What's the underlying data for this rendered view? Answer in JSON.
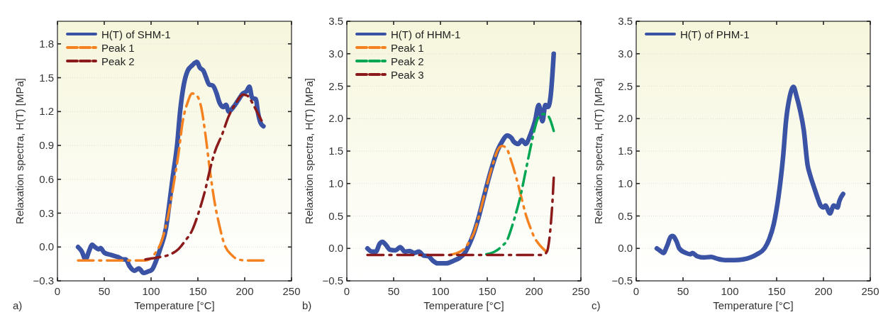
{
  "chart_data": [
    {
      "type": "line",
      "xlabel": "Temperature [°C]",
      "ylabel": "Relaxation spectra, H(T) [MPa]",
      "annotations": [
        "a)"
      ],
      "xlim": [
        0,
        250
      ],
      "xticks": [
        0,
        50,
        100,
        150,
        200,
        250
      ],
      "ylim": [
        -0.3,
        2.0
      ],
      "yticks": [
        {
          "value": -0.3,
          "label": "−0.3"
        },
        {
          "value": 0,
          "label": "0.0"
        },
        0.3,
        0.6,
        0.9,
        1.2,
        1.5,
        1.8
      ],
      "grid": "y",
      "legend": "top left",
      "line_style": "solid",
      "series": [
        {
          "name": "H(T) of SHM-1",
          "color": "#3a53a4",
          "x": [
            22,
            26,
            30,
            34,
            37,
            40,
            44,
            46,
            50,
            57,
            65,
            70,
            73,
            77,
            82,
            87,
            92,
            96,
            101,
            105,
            110,
            116,
            119,
            123,
            128,
            131,
            135,
            139,
            144,
            149,
            152,
            156,
            158,
            162,
            166,
            170,
            173,
            177,
            180,
            183,
            188,
            193,
            198,
            202,
            205,
            208,
            212,
            214,
            217,
            220
          ],
          "values": [
            0.0,
            -0.04,
            -0.11,
            -0.03,
            0.02,
            0.0,
            -0.02,
            -0.01,
            -0.05,
            -0.07,
            -0.09,
            -0.11,
            -0.11,
            -0.17,
            -0.21,
            -0.19,
            -0.23,
            -0.22,
            -0.2,
            -0.13,
            -0.01,
            0.17,
            0.35,
            0.61,
            0.92,
            1.2,
            1.44,
            1.56,
            1.61,
            1.64,
            1.59,
            1.56,
            1.52,
            1.44,
            1.43,
            1.36,
            1.28,
            1.24,
            1.26,
            1.2,
            1.24,
            1.3,
            1.36,
            1.38,
            1.42,
            1.32,
            1.31,
            1.2,
            1.1,
            1.07
          ]
        },
        {
          "name": "Peak 1",
          "color": "#f58220",
          "line_style": "dashed",
          "x": [
            22,
            94,
            104,
            112,
            119,
            124,
            129,
            134,
            139,
            144,
            149,
            154,
            158,
            163,
            168,
            173,
            178,
            186,
            193,
            203,
            220
          ],
          "values": [
            -0.12,
            -0.12,
            -0.06,
            0.07,
            0.31,
            0.55,
            0.81,
            1.12,
            1.28,
            1.36,
            1.34,
            1.22,
            1.0,
            0.67,
            0.39,
            0.19,
            0.03,
            -0.07,
            -0.11,
            -0.12,
            -0.12
          ]
        },
        {
          "name": "Peak 2",
          "color": "#8b1a1a",
          "line_style": "dashed",
          "x": [
            94,
            109,
            119,
            129,
            136,
            144,
            151,
            158,
            163,
            168,
            176,
            183,
            191,
            198,
            203,
            208,
            213,
            218
          ],
          "values": [
            -0.11,
            -0.09,
            -0.07,
            -0.02,
            0.05,
            0.15,
            0.31,
            0.51,
            0.69,
            0.84,
            1.0,
            1.16,
            1.28,
            1.35,
            1.34,
            1.28,
            1.2,
            1.12
          ]
        }
      ]
    },
    {
      "type": "line",
      "xlabel": "Temperature [°C]",
      "ylabel": "Relaxation spectra, H(T) [MPa]",
      "annotations": [
        "b)"
      ],
      "xlim": [
        0,
        250
      ],
      "xticks": [
        0,
        50,
        100,
        150,
        200,
        250
      ],
      "ylim": [
        -0.5,
        3.5
      ],
      "yticks": [
        {
          "value": -0.5,
          "label": "−0.5"
        },
        {
          "value": 0,
          "label": "0.0"
        },
        0.5,
        {
          "value": 1,
          "label": "1.0"
        },
        1.5,
        {
          "value": 2,
          "label": "2.0"
        },
        2.5,
        {
          "value": 3,
          "label": "3.0"
        },
        3.5
      ],
      "grid": "y",
      "legend": "top left",
      "line_style": "solid",
      "series": [
        {
          "name": "H(T) of HHM-1",
          "color": "#3a53a4",
          "x": [
            22,
            27,
            31,
            35,
            38,
            42,
            46,
            52,
            57,
            62,
            67,
            72,
            77,
            82,
            87,
            92,
            97,
            106,
            114,
            121,
            126,
            131,
            136,
            141,
            146,
            151,
            156,
            161,
            166,
            171,
            176,
            178,
            183,
            187,
            191,
            196,
            201,
            205,
            209,
            212,
            215,
            218,
            221
          ],
          "values": [
            0.0,
            -0.05,
            -0.05,
            0.07,
            0.1,
            0.05,
            -0.02,
            -0.03,
            0.02,
            -0.05,
            -0.04,
            -0.07,
            -0.05,
            -0.11,
            -0.12,
            -0.19,
            -0.23,
            -0.23,
            -0.19,
            -0.14,
            -0.07,
            0.07,
            0.25,
            0.49,
            0.77,
            1.05,
            1.3,
            1.51,
            1.65,
            1.74,
            1.7,
            1.65,
            1.61,
            1.67,
            1.61,
            1.75,
            1.96,
            2.21,
            1.96,
            2.21,
            2.18,
            2.39,
            3.0
          ]
        },
        {
          "name": "Peak 1",
          "color": "#f58220",
          "line_style": "dashed",
          "x": [
            110,
            121,
            126,
            131,
            136,
            141,
            146,
            151,
            156,
            161,
            166,
            171,
            176,
            181,
            186,
            191,
            196,
            200,
            205,
            213
          ],
          "values": [
            -0.1,
            -0.05,
            0.0,
            0.11,
            0.25,
            0.49,
            0.77,
            1.05,
            1.3,
            1.51,
            1.58,
            1.53,
            1.33,
            1.09,
            0.81,
            0.53,
            0.32,
            0.18,
            0.07,
            -0.05
          ]
        },
        {
          "name": "Peak 2",
          "color": "#00a651",
          "line_style": "dashed",
          "x": [
            149,
            158,
            166,
            171,
            176,
            181,
            186,
            191,
            196,
            201,
            204,
            210,
            215,
            221
          ],
          "values": [
            -0.09,
            -0.05,
            0.04,
            0.12,
            0.32,
            0.56,
            0.84,
            1.19,
            1.54,
            1.86,
            2.0,
            2.07,
            2.04,
            1.81
          ]
        },
        {
          "name": "Peak 3",
          "color": "#8b1a1a",
          "line_style": "dashed",
          "x": [
            22,
            210,
            214,
            216,
            218,
            220,
            221
          ],
          "values": [
            -0.1,
            -0.1,
            -0.04,
            0.11,
            0.39,
            0.81,
            1.09
          ]
        }
      ]
    },
    {
      "type": "line",
      "xlabel": "Temperature [°C]",
      "ylabel": "Relaxation spectra, H(T) [MPa]",
      "annotations": [
        "c)"
      ],
      "xlim": [
        0,
        250
      ],
      "xticks": [
        0,
        50,
        100,
        150,
        200,
        250
      ],
      "ylim": [
        -0.5,
        3.5
      ],
      "yticks": [
        {
          "value": -0.5,
          "label": "−0.5"
        },
        {
          "value": 0,
          "label": "0.0"
        },
        0.5,
        {
          "value": 1,
          "label": "1.0"
        },
        1.5,
        {
          "value": 2,
          "label": "2.0"
        },
        2.5,
        {
          "value": 3,
          "label": "3.0"
        },
        3.5
      ],
      "grid": "y",
      "legend": "top left",
      "line_style": "solid",
      "series": [
        {
          "name": "H(T) of PHM-1",
          "color": "#3a53a4",
          "x": [
            22,
            25,
            29,
            33,
            37,
            39,
            43,
            46,
            53,
            58,
            60,
            65,
            72,
            80,
            87,
            95,
            105,
            114,
            122,
            129,
            137,
            142,
            147,
            152,
            157,
            160,
            164,
            168,
            171,
            175,
            179,
            183,
            186,
            190,
            194,
            197,
            200,
            202,
            207,
            211,
            215,
            217,
            221
          ],
          "values": [
            0.0,
            -0.03,
            -0.07,
            0.04,
            0.18,
            0.19,
            0.11,
            0.0,
            -0.07,
            -0.09,
            -0.07,
            -0.12,
            -0.14,
            -0.13,
            -0.16,
            -0.18,
            -0.18,
            -0.17,
            -0.14,
            -0.09,
            0.0,
            0.14,
            0.38,
            0.8,
            1.43,
            1.96,
            2.34,
            2.49,
            2.36,
            2.13,
            1.82,
            1.29,
            1.12,
            0.94,
            0.77,
            0.66,
            0.63,
            0.66,
            0.54,
            0.66,
            0.63,
            0.73,
            0.84
          ]
        }
      ]
    }
  ]
}
